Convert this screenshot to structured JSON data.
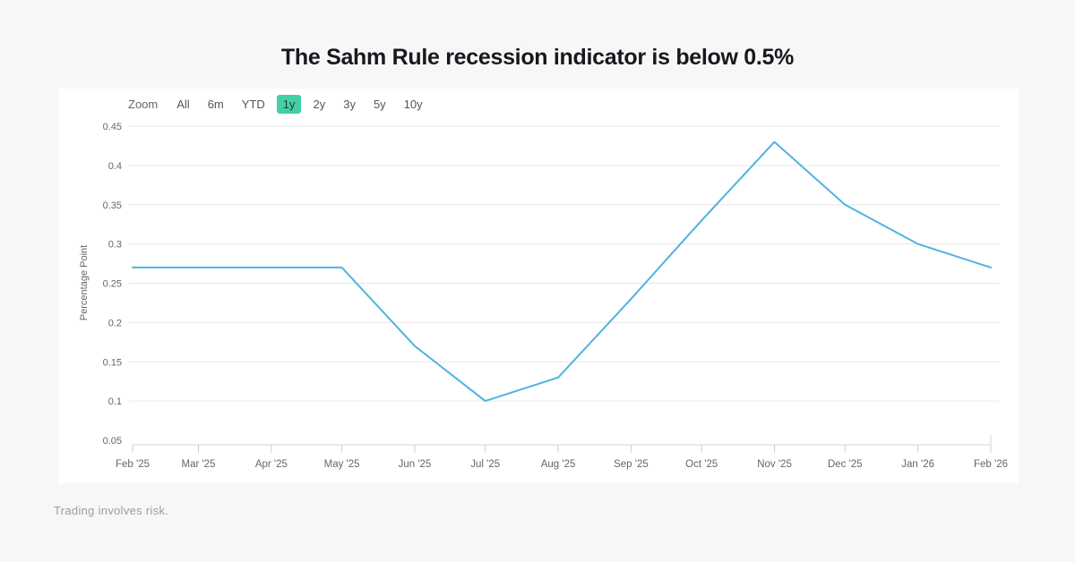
{
  "page": {
    "title": "The Sahm Rule recession indicator is below 0.5%",
    "footer": "Trading involves risk.",
    "background": "#f7f7f7",
    "panel_background": "#ffffff"
  },
  "zoom_bar": {
    "label": "Zoom",
    "options": [
      "All",
      "6m",
      "YTD",
      "1y",
      "2y",
      "3y",
      "5y",
      "10y"
    ],
    "selected": "1y",
    "selected_bg": "#40d2a5",
    "selected_text": "#2f3b40"
  },
  "chart_data": {
    "type": "line",
    "title": "The Sahm Rule recession indicator is below 0.5%",
    "ylabel": "Percentage Point",
    "xlabel": "",
    "categories": [
      "Feb '25",
      "Mar '25",
      "Apr '25",
      "May '25",
      "Jun '25",
      "Jul '25",
      "Aug '25",
      "Sep '25",
      "Oct '25",
      "Nov '25",
      "Dec '25",
      "Jan '26",
      "Feb '26"
    ],
    "values": [
      0.27,
      0.27,
      0.27,
      0.27,
      0.17,
      0.1,
      0.13,
      0.23,
      0.33,
      0.43,
      0.35,
      0.3,
      0.27
    ],
    "ylim": [
      0.05,
      0.45
    ],
    "yticks": [
      0.05,
      0.1,
      0.15,
      0.2,
      0.25,
      0.3,
      0.35,
      0.4,
      0.45
    ],
    "ytick_labels": [
      "0.05",
      "0.1",
      "0.15",
      "0.2",
      "0.25",
      "0.3",
      "0.35",
      "0.4",
      "0.45"
    ],
    "line_color": "#4fb3e2",
    "grid": true,
    "gridline_color": "#e7e7e7",
    "axis_line_color": "#ccd3dd",
    "tick_color": "#cfcfcf",
    "label_color": "#666666",
    "legend": "none"
  }
}
